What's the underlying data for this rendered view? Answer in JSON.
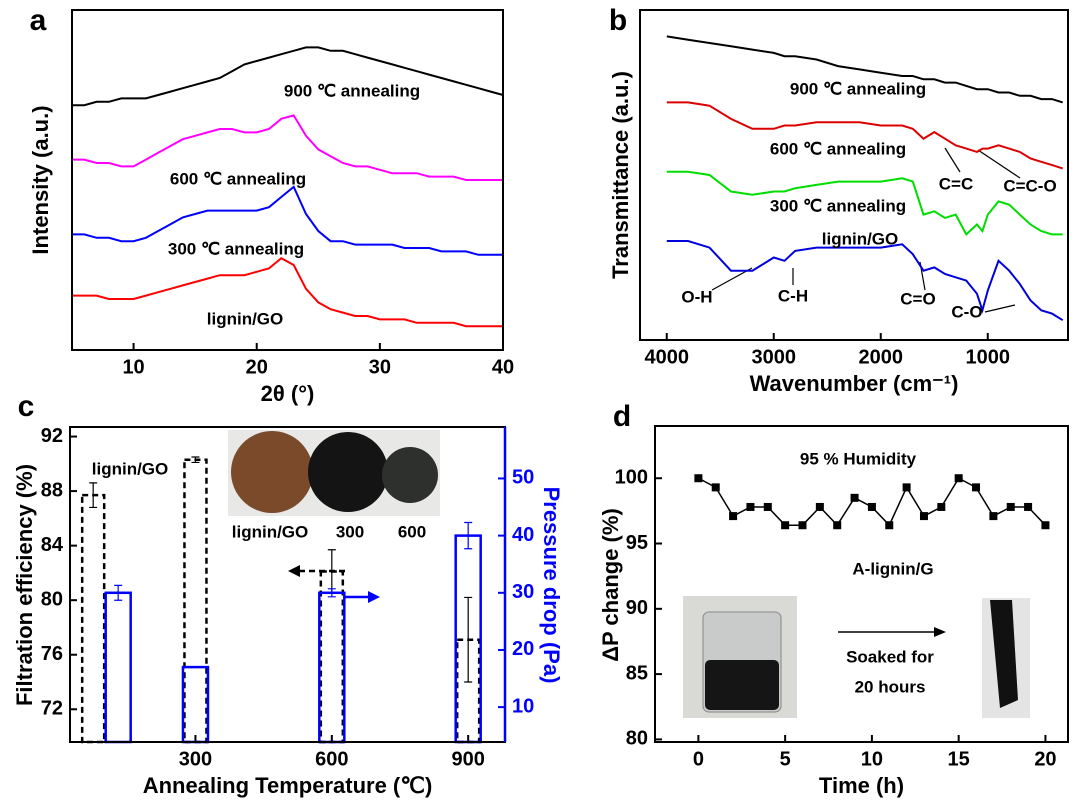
{
  "chart_data": [
    {
      "type": "line",
      "label": "a",
      "x_label": "2θ (°)",
      "y_label": "Intensity (a.u.)",
      "xlim": [
        5,
        40
      ],
      "xticks": [
        10,
        20,
        30,
        40
      ],
      "ylim": [
        0,
        100
      ],
      "x": [
        5,
        6,
        7,
        8,
        9,
        10,
        11,
        12,
        13,
        14,
        15,
        16,
        17,
        18,
        19,
        20,
        21,
        22,
        23,
        24,
        25,
        26,
        27,
        28,
        29,
        30,
        31,
        32,
        33,
        34,
        35,
        36,
        37,
        38,
        39,
        40
      ],
      "series": [
        {
          "color": "#ff0000",
          "values": [
            16,
            16,
            16,
            15,
            15,
            15,
            16,
            17,
            18,
            19,
            20,
            21,
            22,
            22,
            22,
            23,
            24,
            27,
            25,
            18,
            14,
            12,
            11,
            10,
            10,
            9,
            9,
            9,
            8,
            8,
            8,
            8,
            7,
            7,
            7,
            7
          ]
        },
        {
          "color": "#0000ff",
          "values": [
            34,
            34,
            33,
            33,
            32,
            32,
            33,
            35,
            37,
            39,
            40,
            41,
            41,
            41,
            41,
            41,
            42,
            45,
            48,
            40,
            35,
            32,
            32,
            31,
            31,
            31,
            31,
            30,
            30,
            30,
            29,
            29,
            29,
            28,
            28,
            28
          ]
        },
        {
          "color": "#ff00ff",
          "values": [
            56,
            56,
            55,
            55,
            54,
            54,
            56,
            58,
            60,
            62,
            63,
            64,
            65,
            65,
            64,
            64,
            65,
            68,
            69,
            63,
            59,
            57,
            55,
            54,
            54,
            53,
            52,
            52,
            52,
            51,
            51,
            51,
            50,
            50,
            50,
            50
          ]
        },
        {
          "color": "#000000",
          "values": [
            72,
            72,
            73,
            73,
            74,
            74,
            74,
            75,
            76,
            77,
            78,
            79,
            80,
            82,
            84,
            85,
            86,
            87,
            88,
            89,
            89,
            88,
            88,
            87,
            86,
            85,
            84,
            83,
            82,
            81,
            80,
            79,
            78,
            77,
            76,
            75
          ]
        }
      ],
      "annotations": [
        "900 ℃ annealing",
        "600 ℃ annealing",
        "300 ℃ annealing",
        "lignin/GO"
      ]
    },
    {
      "type": "line",
      "label": "b",
      "x_label": "Wavenumber (cm⁻¹)",
      "y_label": "Transmittance (a.u.)",
      "xlim": [
        4250,
        250
      ],
      "xticks": [
        4000,
        3000,
        2000,
        1000
      ],
      "ylim": [
        0,
        100
      ],
      "x": [
        4000,
        3800,
        3600,
        3400,
        3200,
        3000,
        2900,
        2800,
        2600,
        2400,
        2200,
        2000,
        1800,
        1700,
        1600,
        1500,
        1400,
        1300,
        1200,
        1100,
        1050,
        1000,
        900,
        800,
        700,
        600,
        500,
        400,
        300
      ],
      "series": [
        {
          "color": "#000000",
          "values": [
            92,
            91,
            90,
            89,
            88,
            87,
            86,
            86,
            85,
            83,
            82,
            81,
            80,
            80,
            79,
            79,
            78,
            78,
            77,
            76,
            76,
            76,
            75,
            75,
            74,
            74,
            73,
            73,
            72
          ]
        },
        {
          "color": "#dd0000",
          "values": [
            72,
            72,
            71,
            67,
            64,
            64,
            65,
            65,
            66,
            66,
            66,
            65,
            65,
            64,
            61,
            63,
            61,
            59,
            58,
            57,
            58,
            58,
            59,
            58,
            57,
            55,
            54,
            53,
            52
          ]
        },
        {
          "color": "#00dd00",
          "values": [
            51,
            51,
            50,
            45,
            44,
            45,
            45,
            46,
            47,
            48,
            48,
            48,
            49,
            48,
            38,
            39,
            37,
            38,
            32,
            35,
            33,
            38,
            42,
            41,
            38,
            35,
            33,
            32,
            32
          ]
        },
        {
          "color": "#0000dd",
          "values": [
            30,
            30,
            28,
            21,
            21,
            25,
            24,
            27,
            28,
            28,
            28,
            28,
            29,
            26,
            21,
            22,
            20,
            19,
            18,
            14,
            9,
            15,
            24,
            21,
            17,
            12,
            9,
            8,
            6
          ]
        }
      ],
      "annotations": [
        "900 ℃ annealing",
        "600 ℃ annealing",
        "C=C",
        "C=C-O",
        "300 ℃ annealing",
        "lignin/GO",
        "O-H",
        "C-H",
        "C=O",
        "C-O"
      ]
    },
    {
      "type": "bar",
      "label": "c",
      "x_label": "Annealing Temperature (℃)",
      "y_label": "Filtration efficiency (%)",
      "y2_label": "Pressure drop (Pa)",
      "xlim": [
        24,
        981
      ],
      "xticks": [
        300,
        600,
        900
      ],
      "ylim": [
        69.6,
        92.7
      ],
      "yticks": [
        72,
        76,
        80,
        84,
        88,
        92
      ],
      "y2lim": [
        3.9,
        59
      ],
      "y2ticks": [
        10,
        20,
        30,
        40,
        50
      ],
      "series": [
        {
          "color": "#000000",
          "style": "dashed",
          "x": [
            75,
            300,
            600,
            900
          ],
          "values": [
            87.7,
            90.3,
            82.1,
            77.1
          ],
          "errors": [
            0.9,
            0.2,
            1.6,
            3.1
          ]
        },
        {
          "color": "#0000ff",
          "axis": "y2",
          "x": [
            130,
            300,
            600,
            900
          ],
          "values": [
            30,
            17,
            30,
            40
          ],
          "errors": [
            1.3,
            null,
            0.7,
            2.3
          ]
        }
      ],
      "annotations": [
        "lignin/GO",
        "lignin/GO",
        "300",
        "600"
      ]
    },
    {
      "type": "line",
      "label": "d",
      "x_label": "Time (h)",
      "y_label": "ΔP change (%)",
      "markers": true,
      "xlim": [
        -2.5,
        21.3
      ],
      "xticks": [
        0,
        5,
        10,
        15,
        20
      ],
      "ylim": [
        79.8,
        104
      ],
      "yticks": [
        80,
        85,
        90,
        95,
        100
      ],
      "x": [
        0,
        1,
        2,
        3,
        4,
        5,
        6,
        7,
        8,
        9,
        10,
        11,
        12,
        13,
        14,
        15,
        16,
        17,
        18,
        19,
        20
      ],
      "series": [
        {
          "color": "#000000",
          "values": [
            100,
            99.3,
            97.1,
            97.8,
            97.8,
            96.4,
            96.4,
            97.8,
            96.4,
            98.5,
            97.8,
            96.4,
            99.3,
            97.1,
            97.8,
            100,
            99.3,
            97.1,
            97.8,
            97.8,
            96.4
          ]
        }
      ],
      "annotations": [
        "95 % Humidity",
        "A-lignin/G",
        "Soaked for",
        "20 hours"
      ]
    }
  ]
}
